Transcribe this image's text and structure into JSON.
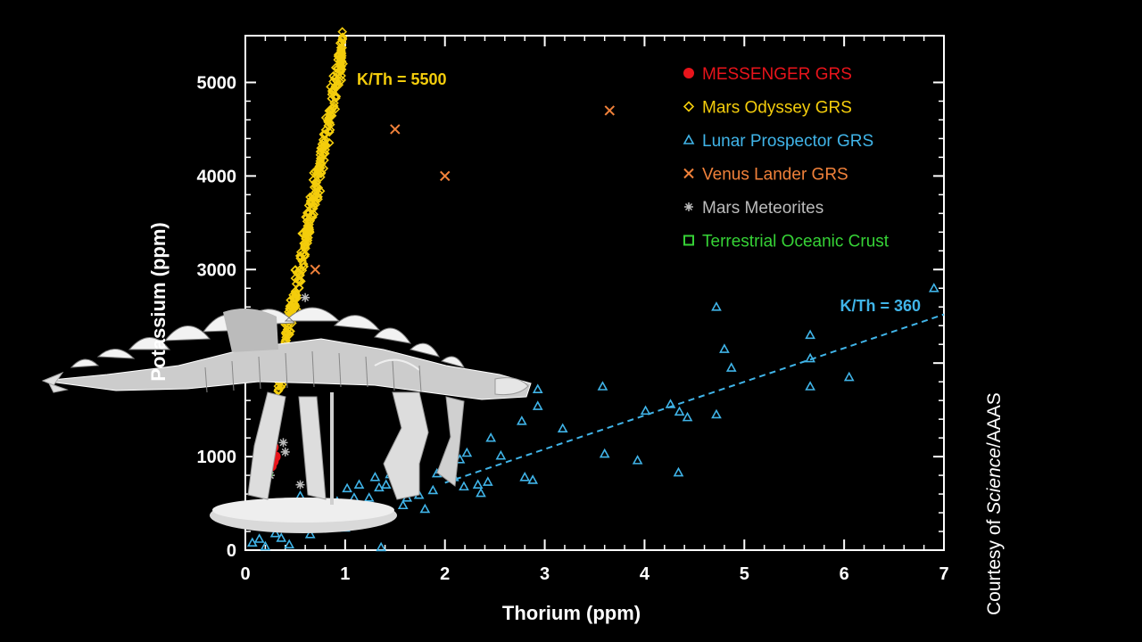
{
  "credit": {
    "prefix": "Courtesy of ",
    "italic": "Science",
    "suffix": "/AAAS"
  },
  "colors": {
    "messenger": "#e8141b",
    "odyssey": "#f4cd0c",
    "lunar": "#40b4e8",
    "venus": "#f0813a",
    "meteorite": "#bbbbbb",
    "oceanic": "#36d236",
    "axes": "#ffffff"
  },
  "chart_data": {
    "type": "scatter",
    "title": "",
    "xlabel": "Thorium (ppm)",
    "ylabel": "Potassium (ppm)",
    "xlim": [
      0,
      7
    ],
    "ylim": [
      0,
      5500
    ],
    "xticks": [
      0,
      1,
      2,
      3,
      4,
      5,
      6,
      7
    ],
    "yticks": [
      0,
      1000,
      2000,
      3000,
      4000,
      5000
    ],
    "ytick_labels": [
      "0",
      "1000",
      "",
      "3000",
      "4000",
      "5000"
    ],
    "legend_position": "top-right",
    "legend": [
      {
        "name": "MESSENGER GRS",
        "marker": "filled-circle",
        "color_key": "messenger"
      },
      {
        "name": "Mars Odyssey GRS",
        "marker": "diamond",
        "color_key": "odyssey"
      },
      {
        "name": "Lunar Prospector GRS",
        "marker": "triangle",
        "color_key": "lunar"
      },
      {
        "name": "Venus Lander GRS",
        "marker": "x",
        "color_key": "venus"
      },
      {
        "name": "Mars Meteorites",
        "marker": "asterisk",
        "color_key": "meteorite"
      },
      {
        "name": "Terrestrial Oceanic Crust",
        "marker": "square",
        "color_key": "oceanic"
      }
    ],
    "reference_lines": [
      {
        "label": "K/Th = 5500",
        "ratio": 5500,
        "x_range": [
          0.32,
          0.98
        ],
        "color_key": "odyssey"
      },
      {
        "label": "K/Th = 360",
        "ratio": 360,
        "x_range": [
          2.0,
          7.0
        ],
        "color_key": "lunar"
      }
    ],
    "series": [
      {
        "name": "Venus Lander GRS",
        "points": [
          [
            1.5,
            4500
          ],
          [
            2.0,
            4000
          ],
          [
            3.65,
            4700
          ],
          [
            0.7,
            3000
          ]
        ]
      },
      {
        "name": "Mars Meteorites",
        "points": [
          [
            0.6,
            2700
          ],
          [
            0.38,
            1150
          ],
          [
            0.4,
            1050
          ],
          [
            0.55,
            700
          ],
          [
            0.25,
            800
          ]
        ]
      },
      {
        "name": "Terrestrial Oceanic Crust",
        "points": [
          [
            0.22,
            850
          ]
        ]
      },
      {
        "name": "MESSENGER GRS",
        "points": [
          [
            0.28,
            1100
          ],
          [
            0.3,
            1000
          ],
          [
            0.26,
            900
          ],
          [
            0.28,
            950
          ]
        ]
      },
      {
        "name": "Lunar Prospector GRS",
        "points": [
          [
            6.9,
            2800
          ],
          [
            4.72,
            2600
          ],
          [
            5.66,
            2300
          ],
          [
            4.8,
            2150
          ],
          [
            5.66,
            2050
          ],
          [
            4.87,
            1950
          ],
          [
            6.05,
            1850
          ],
          [
            5.66,
            1750
          ],
          [
            3.58,
            1750
          ],
          [
            2.93,
            1720
          ],
          [
            2.93,
            1540
          ],
          [
            2.77,
            1380
          ],
          [
            4.26,
            1560
          ],
          [
            4.01,
            1490
          ],
          [
            4.35,
            1480
          ],
          [
            4.43,
            1420
          ],
          [
            4.72,
            1450
          ],
          [
            3.18,
            1300
          ],
          [
            2.46,
            1200
          ],
          [
            2.22,
            1040
          ],
          [
            2.56,
            1010
          ],
          [
            2.15,
            970
          ],
          [
            3.6,
            1030
          ],
          [
            3.93,
            960
          ],
          [
            4.34,
            830
          ],
          [
            2.8,
            780
          ],
          [
            2.88,
            750
          ],
          [
            1.96,
            860
          ],
          [
            1.92,
            820
          ],
          [
            2.09,
            780
          ],
          [
            2.43,
            730
          ],
          [
            2.33,
            700
          ],
          [
            2.36,
            610
          ],
          [
            2.19,
            680
          ],
          [
            1.88,
            640
          ],
          [
            1.74,
            590
          ],
          [
            1.6,
            620
          ],
          [
            1.58,
            480
          ],
          [
            1.8,
            440
          ],
          [
            1.45,
            810
          ],
          [
            1.41,
            700
          ],
          [
            1.34,
            670
          ],
          [
            1.3,
            780
          ],
          [
            1.24,
            560
          ],
          [
            1.14,
            700
          ],
          [
            1.09,
            560
          ],
          [
            1.02,
            660
          ],
          [
            0.92,
            520
          ],
          [
            0.73,
            880
          ],
          [
            0.74,
            790
          ],
          [
            0.55,
            580
          ],
          [
            0.61,
            430
          ],
          [
            0.46,
            340
          ],
          [
            0.36,
            130
          ],
          [
            0.3,
            180
          ],
          [
            0.14,
            120
          ],
          [
            0.65,
            170
          ],
          [
            1.36,
            30
          ],
          [
            1.61,
            780
          ],
          [
            1.62,
            560
          ],
          [
            1.0,
            240
          ],
          [
            0.85,
            300
          ],
          [
            0.2,
            40
          ],
          [
            0.44,
            60
          ],
          [
            0.07,
            80
          ]
        ]
      },
      {
        "name": "Mars Odyssey GRS",
        "generated_cloud": {
          "count": 330,
          "x_range": [
            0.32,
            0.98
          ],
          "k_th_ratio": 5500,
          "spread": 230
        },
        "points": [
          [
            0.95,
            5420
          ],
          [
            0.96,
            5330
          ],
          [
            0.93,
            5280
          ],
          [
            0.98,
            5200
          ]
        ]
      }
    ]
  }
}
